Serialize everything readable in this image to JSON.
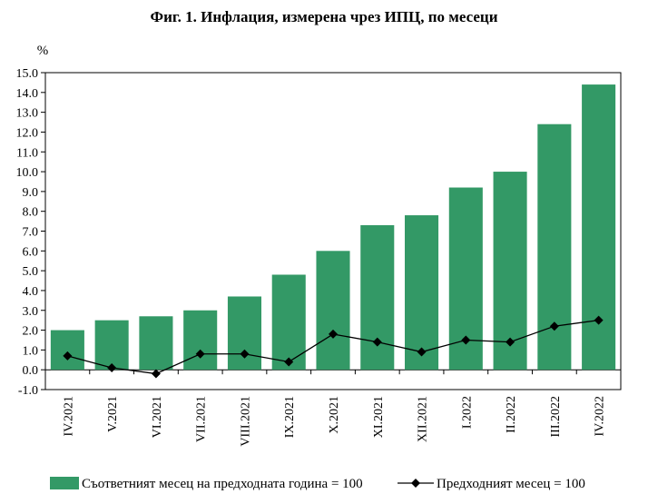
{
  "chart_data": {
    "type": "bar",
    "title": "Фиг. 1. Инфлация, измерена чрез ИПЦ, по месеци",
    "ylabel": "%",
    "xlabel": "",
    "ylim": [
      -1.0,
      15.0
    ],
    "ytick_step": 1.0,
    "yticks": [
      "-1.0",
      "0.0",
      "1.0",
      "2.0",
      "3.0",
      "4.0",
      "5.0",
      "6.0",
      "7.0",
      "8.0",
      "9.0",
      "10.0",
      "11.0",
      "12.0",
      "13.0",
      "14.0",
      "15.0"
    ],
    "categories": [
      "IV.2021",
      "V.2021",
      "VI.2021",
      "VII.2021",
      "VIII.2021",
      "IX.2021",
      "X.2021",
      "XI.2021",
      "XII.2021",
      "I.2022",
      "II.2022",
      "III.2022",
      "IV.2022"
    ],
    "series": [
      {
        "name": "Съответният месец на предходната година = 100",
        "kind": "bar",
        "color": "#339966",
        "values": [
          2.0,
          2.5,
          2.7,
          3.0,
          3.7,
          4.8,
          6.0,
          7.3,
          7.8,
          9.2,
          10.0,
          12.4,
          14.4
        ]
      },
      {
        "name": "Предходният месец = 100",
        "kind": "line",
        "color": "#000000",
        "marker": "diamond",
        "values": [
          0.7,
          0.1,
          -0.2,
          0.8,
          0.8,
          0.4,
          1.8,
          1.4,
          0.9,
          1.5,
          1.4,
          2.2,
          2.5
        ]
      }
    ],
    "grid": false,
    "legend_position": "bottom"
  }
}
